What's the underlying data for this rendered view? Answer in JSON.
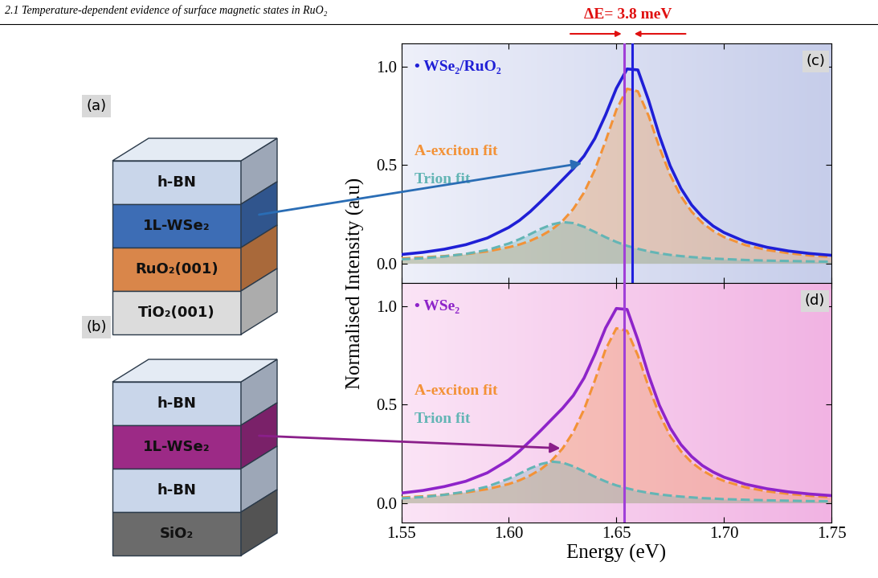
{
  "header": "2.1 Temperature-dependent evidence of surface magnetic states in RuO₂",
  "diagrams": [
    {
      "label": "(a)",
      "layers": [
        {
          "text": "h-BN",
          "color": "#c9d6ea"
        },
        {
          "text": "1L-WSe₂",
          "color": "#3d6db5"
        },
        {
          "text": "RuO₂(001)",
          "color": "#d9864a"
        },
        {
          "text": "TiO₂(001)",
          "color": "#dcdcdc"
        }
      ]
    },
    {
      "label": "(b)",
      "layers": [
        {
          "text": "h-BN",
          "color": "#c9d6ea"
        },
        {
          "text": "1L-WSe₂",
          "color": "#9c2a86"
        },
        {
          "text": "h-BN",
          "color": "#c9d6ea"
        },
        {
          "text": "SiO₂",
          "color": "#6b6b6b"
        }
      ]
    }
  ],
  "y_label": "Normalised Intensity (a.u)",
  "chart_data": [
    {
      "type": "line",
      "panel_label": "(c)",
      "annotation": "ΔE= 3.8 meV",
      "tick_labels": "y",
      "x": [
        1.55,
        1.56,
        1.57,
        1.58,
        1.59,
        1.6,
        1.605,
        1.61,
        1.615,
        1.62,
        1.625,
        1.63,
        1.635,
        1.64,
        1.645,
        1.65,
        1.655,
        1.66,
        1.665,
        1.67,
        1.675,
        1.68,
        1.685,
        1.69,
        1.695,
        1.7,
        1.71,
        1.72,
        1.73,
        1.74,
        1.75
      ],
      "xlim": [
        1.55,
        1.75
      ],
      "xticks": [
        1.55,
        {
          "value": 1.6,
          "label": "1.60"
        },
        1.65,
        {
          "value": 1.7,
          "label": "1.70"
        },
        1.75
      ],
      "ylim": [
        -0.1,
        1.12
      ],
      "yticks": [
        {
          "value": 0,
          "label": "0.0"
        },
        0.5,
        {
          "value": 1,
          "label": "1.0"
        }
      ],
      "peak_lines": [
        {
          "x": 1.6535,
          "color": "#a040d8"
        },
        {
          "x": 1.6573,
          "color": "#2020dd"
        }
      ],
      "series": [
        {
          "name": "• WSe₂/RuO₂",
          "type": "line",
          "color": "#1f1fd6",
          "line_style": "solid",
          "values": [
            0.045,
            0.056,
            0.072,
            0.095,
            0.129,
            0.183,
            0.219,
            0.264,
            0.316,
            0.37,
            0.426,
            0.482,
            0.547,
            0.636,
            0.756,
            0.891,
            0.99,
            0.985,
            0.83,
            0.65,
            0.497,
            0.382,
            0.297,
            0.236,
            0.19,
            0.157,
            0.11,
            0.082,
            0.063,
            0.05,
            0.041
          ]
        },
        {
          "name": "A-exciton fit",
          "type": "area",
          "color": "#f39237",
          "line_style": "dashed",
          "values": [
            0.025,
            0.03,
            0.037,
            0.047,
            0.061,
            0.082,
            0.096,
            0.115,
            0.14,
            0.172,
            0.216,
            0.277,
            0.361,
            0.476,
            0.623,
            0.782,
            0.889,
            0.876,
            0.751,
            0.591,
            0.45,
            0.342,
            0.263,
            0.206,
            0.165,
            0.134,
            0.093,
            0.068,
            0.052,
            0.04,
            0.033
          ]
        },
        {
          "name": "Trion fit",
          "type": "area",
          "color": "#63b5b5",
          "line_style": "dashed",
          "values": [
            0.021,
            0.026,
            0.035,
            0.048,
            0.068,
            0.101,
            0.123,
            0.149,
            0.176,
            0.198,
            0.21,
            0.205,
            0.186,
            0.16,
            0.133,
            0.109,
            0.089,
            0.074,
            0.061,
            0.051,
            0.043,
            0.037,
            0.032,
            0.028,
            0.024,
            0.022,
            0.017,
            0.014,
            0.012,
            0.01,
            0.008
          ]
        }
      ]
    },
    {
      "type": "line",
      "panel_label": "(d)",
      "x_label": "Energy (eV)",
      "x": [
        1.55,
        1.56,
        1.57,
        1.58,
        1.59,
        1.6,
        1.605,
        1.61,
        1.615,
        1.62,
        1.625,
        1.63,
        1.635,
        1.64,
        1.645,
        1.65,
        1.655,
        1.66,
        1.665,
        1.67,
        1.675,
        1.68,
        1.685,
        1.69,
        1.695,
        1.7,
        1.71,
        1.72,
        1.73,
        1.74,
        1.75
      ],
      "xlim": [
        1.55,
        1.75
      ],
      "xticks": [
        1.55,
        {
          "value": 1.6,
          "label": "1.60"
        },
        1.65,
        {
          "value": 1.7,
          "label": "1.70"
        },
        1.75
      ],
      "ylim": [
        -0.1,
        1.12
      ],
      "yticks": [
        {
          "value": 0,
          "label": "0.0"
        },
        0.5,
        {
          "value": 1,
          "label": "1.0"
        }
      ],
      "peak_lines": [
        {
          "x": 1.6535,
          "color": "#a040d8"
        }
      ],
      "series": [
        {
          "name": "• WSe₂",
          "type": "line",
          "color": "#8e24c9",
          "line_style": "solid",
          "values": [
            0.05,
            0.063,
            0.083,
            0.11,
            0.153,
            0.219,
            0.264,
            0.316,
            0.37,
            0.426,
            0.482,
            0.547,
            0.636,
            0.756,
            0.891,
            0.99,
            0.985,
            0.83,
            0.65,
            0.497,
            0.382,
            0.297,
            0.236,
            0.19,
            0.157,
            0.131,
            0.095,
            0.072,
            0.056,
            0.045,
            0.037
          ]
        },
        {
          "name": "A-exciton fit",
          "type": "area",
          "color": "#f39237",
          "line_style": "dashed",
          "values": [
            0.027,
            0.033,
            0.042,
            0.053,
            0.07,
            0.096,
            0.115,
            0.14,
            0.172,
            0.216,
            0.277,
            0.361,
            0.476,
            0.623,
            0.782,
            0.889,
            0.876,
            0.751,
            0.591,
            0.45,
            0.342,
            0.263,
            0.206,
            0.165,
            0.134,
            0.112,
            0.079,
            0.059,
            0.046,
            0.036,
            0.029
          ]
        },
        {
          "name": "Trion fit",
          "type": "area",
          "color": "#63b5b5",
          "line_style": "dashed",
          "values": [
            0.023,
            0.03,
            0.041,
            0.057,
            0.083,
            0.123,
            0.149,
            0.176,
            0.198,
            0.21,
            0.205,
            0.186,
            0.16,
            0.133,
            0.109,
            0.089,
            0.074,
            0.061,
            0.051,
            0.043,
            0.037,
            0.032,
            0.028,
            0.024,
            0.022,
            0.019,
            0.016,
            0.013,
            0.011,
            0.009,
            0.008
          ]
        }
      ]
    }
  ]
}
